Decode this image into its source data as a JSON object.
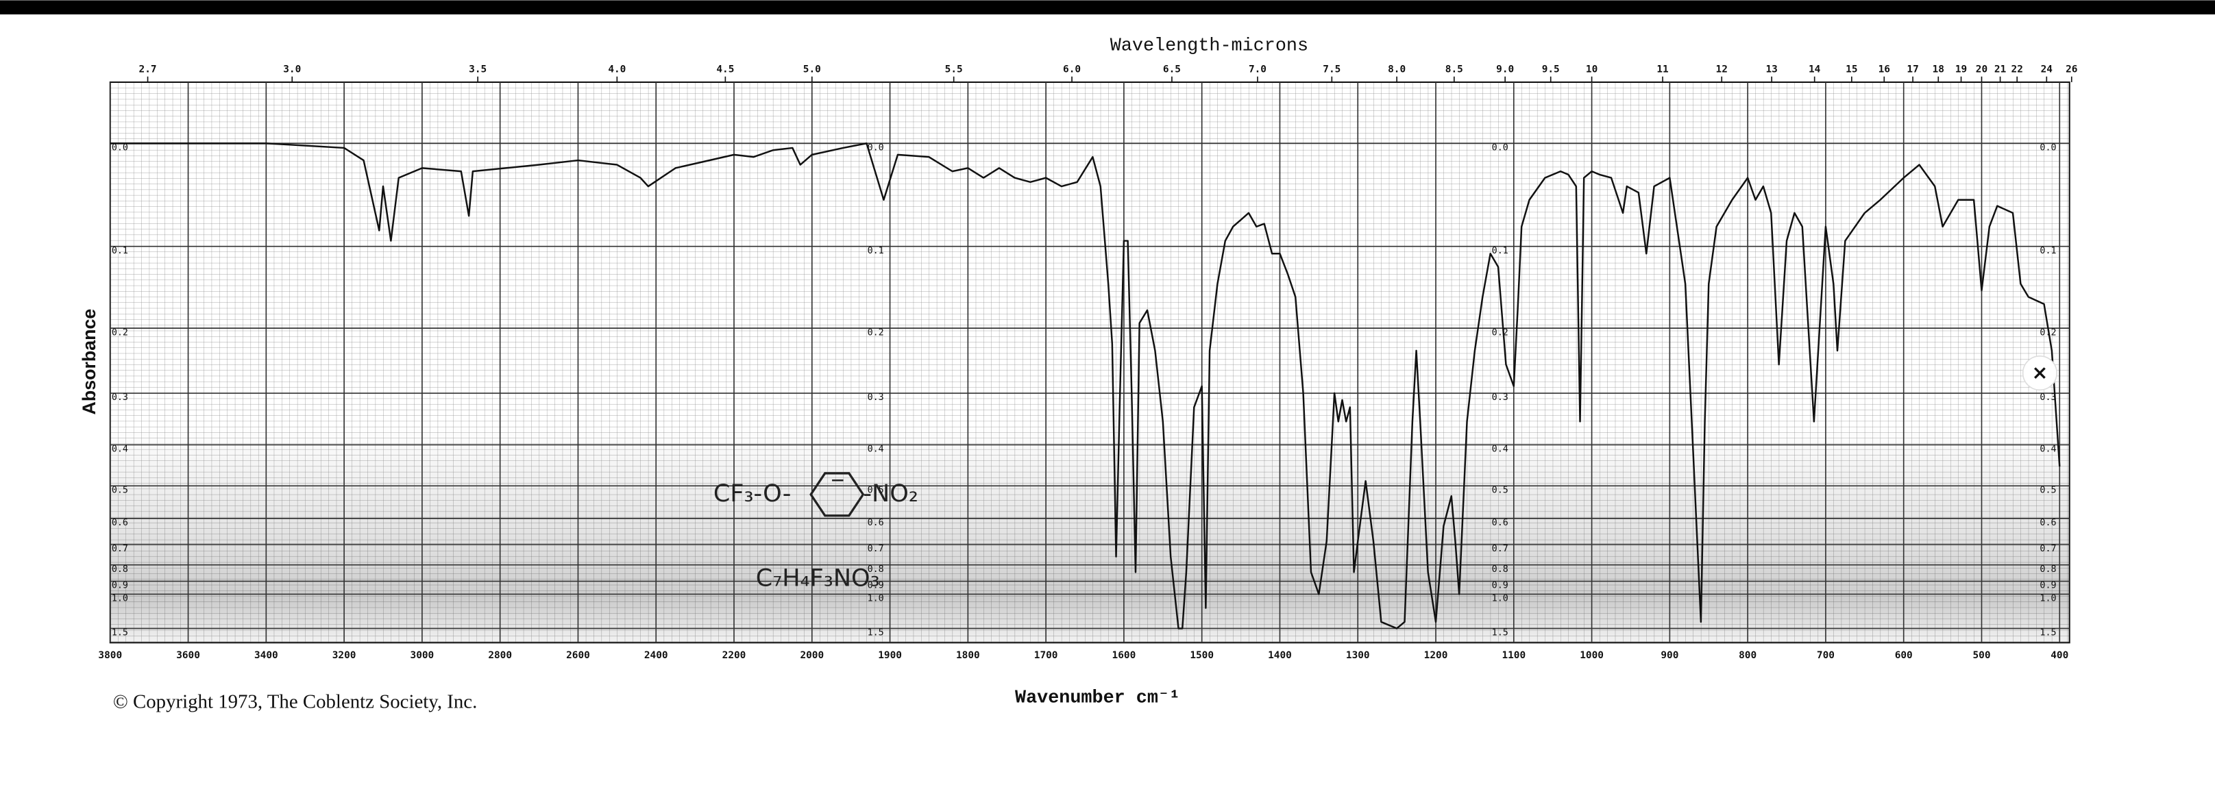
{
  "chart_data": {
    "type": "line",
    "title": "Wavelength-microns",
    "y_label": "Absorbance",
    "x_label": "Wavenumber cm⁻¹",
    "copyright": "© Copyright 1973, The Coblentz Society, Inc.",
    "annotations": [
      "CF₃-O-",
      "-NO₂",
      "C₇H₄F₃NO₃"
    ],
    "color": "#111111",
    "yscale": "transmittance",
    "grid": true,
    "xlim": [
      3800,
      400
    ],
    "xticks": [
      3800,
      3600,
      3400,
      3200,
      3000,
      2800,
      2600,
      2400,
      2200,
      2000,
      1900,
      1800,
      1700,
      1600,
      1500,
      1400,
      1300,
      1200,
      1100,
      1000,
      900,
      800,
      700,
      600,
      500,
      400
    ],
    "x2ticks": [
      2.7,
      {
        "value": 3,
        "label": "3.0"
      },
      3.5,
      {
        "value": 4,
        "label": "4.0"
      },
      4.5,
      {
        "value": 5,
        "label": "5.0"
      },
      5.5,
      {
        "value": 6,
        "label": "6.0"
      },
      6.5,
      {
        "value": 7,
        "label": "7.0"
      },
      7.5,
      {
        "value": 8,
        "label": "8.0"
      },
      8.5,
      {
        "value": 9,
        "label": "9.0"
      },
      9.5,
      10,
      11,
      12,
      13,
      14,
      15,
      16,
      17,
      18,
      19,
      20,
      21,
      22,
      24,
      26
    ],
    "ylim": [
      -0.05,
      2.5
    ],
    "yticks": [
      {
        "value": 0,
        "label": "0.0"
      },
      0.1,
      0.2,
      0.3,
      0.4,
      0.5,
      0.6,
      0.7,
      0.8,
      0.9,
      {
        "value": 1,
        "label": "1.0"
      },
      1.5
    ],
    "x": [
      3800,
      3600,
      3400,
      3200,
      3150,
      3110,
      3100,
      3080,
      3060,
      3000,
      2900,
      2880,
      2870,
      2700,
      2600,
      2500,
      2440,
      2420,
      2350,
      2200,
      2150,
      2100,
      2050,
      2030,
      2000,
      1960,
      1930,
      1908,
      1890,
      1850,
      1820,
      1800,
      1780,
      1760,
      1740,
      1720,
      1700,
      1680,
      1660,
      1640,
      1630,
      1620,
      1615,
      1610,
      1605,
      1600,
      1595,
      1590,
      1585,
      1580,
      1570,
      1560,
      1550,
      1540,
      1530,
      1525,
      1520,
      1510,
      1500,
      1495,
      1490,
      1480,
      1470,
      1460,
      1450,
      1440,
      1430,
      1420,
      1410,
      1400,
      1390,
      1380,
      1370,
      1360,
      1350,
      1340,
      1330,
      1325,
      1320,
      1315,
      1310,
      1305,
      1300,
      1290,
      1280,
      1270,
      1250,
      1240,
      1230,
      1225,
      1220,
      1210,
      1200,
      1190,
      1180,
      1175,
      1170,
      1160,
      1150,
      1140,
      1130,
      1120,
      1110,
      1100,
      1095,
      1090,
      1080,
      1060,
      1040,
      1030,
      1020,
      1015,
      1010,
      1000,
      990,
      975,
      960,
      955,
      940,
      930,
      920,
      900,
      880,
      870,
      860,
      855,
      850,
      840,
      820,
      800,
      790,
      780,
      770,
      760,
      750,
      740,
      730,
      715,
      700,
      690,
      685,
      675,
      650,
      630,
      600,
      580,
      560,
      550,
      530,
      510,
      500,
      490,
      480,
      460,
      450,
      440,
      420,
      410,
      400
    ],
    "values": [
      0,
      0,
      0,
      0.004,
      0.015,
      0.083,
      0.039,
      0.094,
      0.031,
      0.022,
      0.025,
      0.068,
      0.025,
      0.019,
      0.015,
      0.019,
      0.031,
      0.039,
      0.022,
      0.01,
      0.012,
      0.006,
      0.004,
      0.019,
      0.01,
      0.004,
      0,
      0.052,
      0.01,
      0.012,
      0.025,
      0.022,
      0.031,
      0.022,
      0.031,
      0.035,
      0.031,
      0.039,
      0.035,
      0.012,
      0.039,
      0.143,
      0.222,
      0.757,
      0.3,
      0.094,
      0.094,
      0.3,
      0.842,
      0.193,
      0.176,
      0.232,
      0.352,
      0.757,
      1.5,
      1.5,
      0.842,
      0.325,
      0.288,
      1.14,
      0.232,
      0.143,
      0.094,
      0.079,
      0.072,
      0.065,
      0.079,
      0.076,
      0.108,
      0.108,
      0.131,
      0.159,
      0.3,
      0.842,
      1.0,
      0.687,
      0.3,
      0.352,
      0.312,
      0.352,
      0.325,
      0.842,
      0.687,
      0.487,
      0.687,
      1.35,
      1.5,
      1.35,
      0.352,
      0.232,
      0.352,
      0.842,
      1.35,
      0.627,
      0.529,
      0.687,
      1.0,
      0.352,
      0.232,
      0.159,
      0.108,
      0.123,
      0.253,
      0.288,
      0.176,
      0.079,
      0.052,
      0.031,
      0.025,
      0.028,
      0.039,
      0.352,
      0.031,
      0.025,
      0.028,
      0.031,
      0.065,
      0.039,
      0.045,
      0.108,
      0.039,
      0.031,
      0.143,
      0.414,
      1.35,
      0.352,
      0.143,
      0.079,
      0.052,
      0.031,
      0.052,
      0.039,
      0.065,
      0.253,
      0.094,
      0.065,
      0.079,
      0.352,
      0.079,
      0.143,
      0.232,
      0.094,
      0.065,
      0.052,
      0.031,
      0.019,
      0.039,
      0.079,
      0.052,
      0.052,
      0.151,
      0.079,
      0.058,
      0.065,
      0.143,
      0.159,
      0.168,
      0.232,
      0.45
    ]
  }
}
